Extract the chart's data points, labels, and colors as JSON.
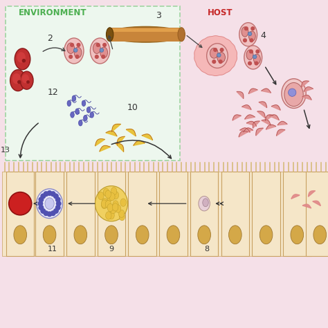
{
  "bg_pink": "#f5e0e8",
  "bg_env": "#edf7ee",
  "env_border": "#a5d6a7",
  "env_label": "ENVIRONMENT",
  "env_label_color": "#4caf50",
  "host_label": "HOST",
  "host_label_color": "#c62828",
  "figsize": [
    4.74,
    4.74
  ],
  "dpi": 100,
  "tube_color": "#c8853a",
  "tube_highlight": "#e8a850",
  "tube_dark": "#9b6020",
  "cell_fill": "#f5e6c8",
  "cell_border": "#c8a060",
  "nucleus_fill": "#d4a848",
  "villi_color": "#d4b870",
  "unsporulated_color": "#c83030",
  "sporulated_outer": "#f0b8b8",
  "sporulated_inner": "#c87878",
  "spiky_fill": "#f5b8b8",
  "spiky_border": "#e08888",
  "merozoite_red": "#d46060",
  "merozoite_salmon": "#e89090",
  "yellow_mero": "#e8c030",
  "blue_sperm": "#7070c8",
  "blue_dark": "#4040a0",
  "schizont_bg": "#f0d060",
  "schizont_inner": "#e0b040",
  "gam_outer": "#e8e8f8",
  "gam_dots": "#5050b0",
  "gam_center": "#c0c0e8",
  "macro_red": "#cc2020",
  "arrow_color": "#333333"
}
